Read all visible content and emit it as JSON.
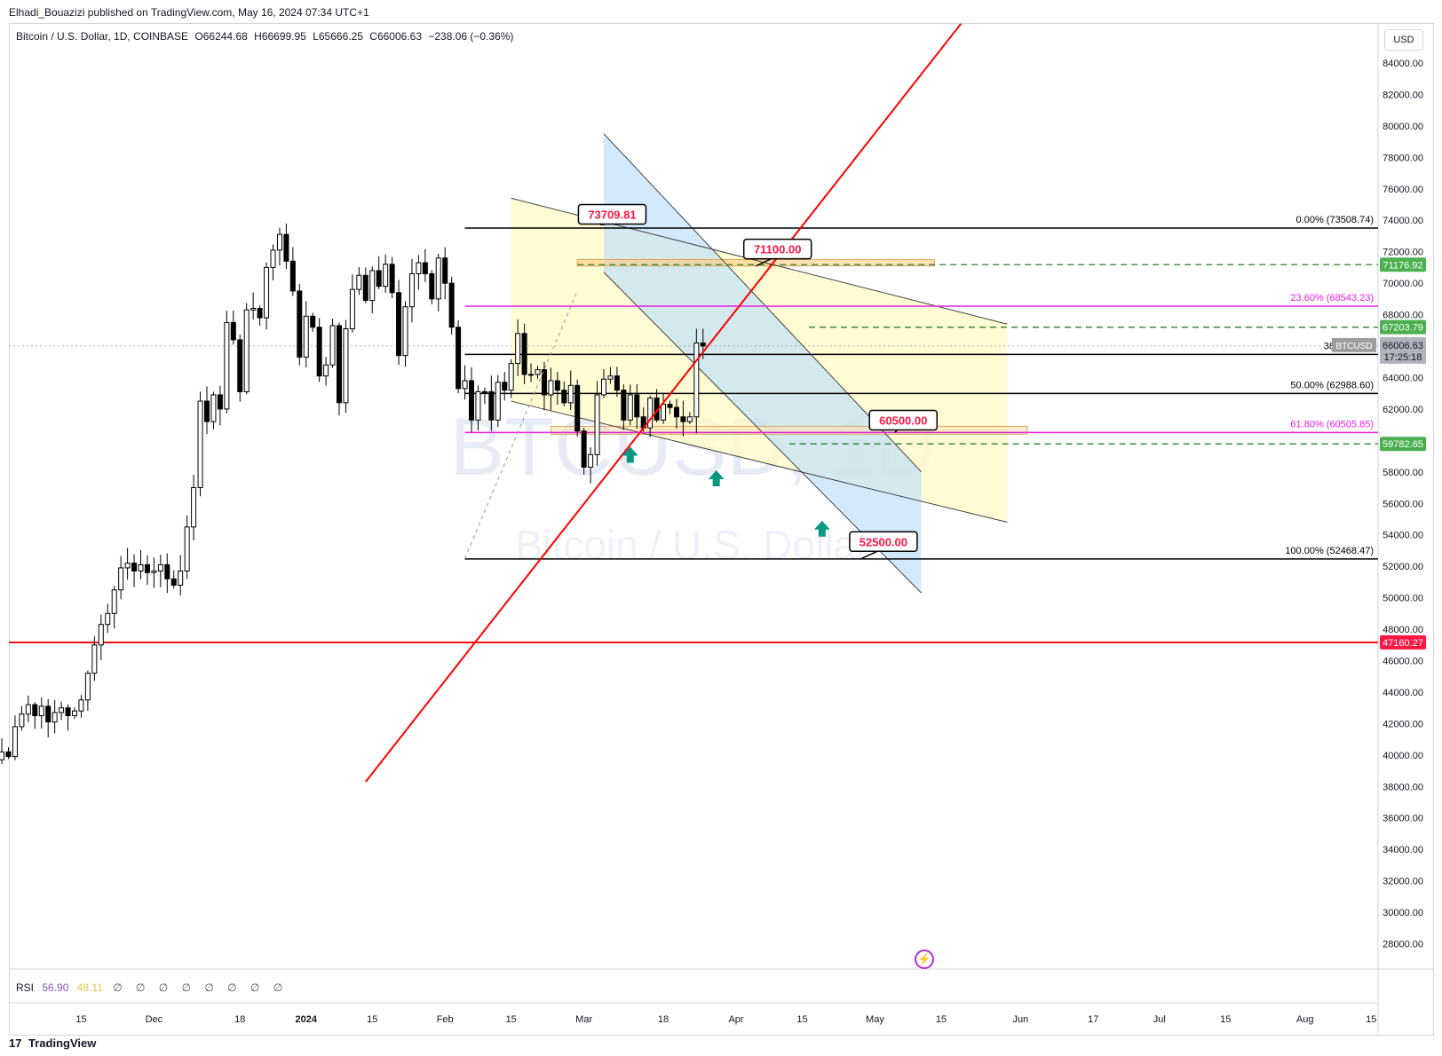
{
  "header": {
    "published": "Elhadi_Bouazizi published on TradingView.com, May 16, 2024 07:34 UTC+1"
  },
  "legend": {
    "symbol": "Bitcoin / U.S. Dollar, 1D, COINBASE",
    "open": "O66244.68",
    "high": "H66699.95",
    "low": "L65666.25",
    "close": "C66006.63",
    "change": "−238.06 (−0.36%)"
  },
  "currency_label": "USD",
  "watermark": {
    "line1": "BTCUSD, 1D",
    "line2": "Bitcoin / U.S. Dollar"
  },
  "rsi": {
    "label": "RSI",
    "value1": "56.90",
    "value2": "48.11",
    "placeholders": "∅ ∅ ∅ ∅ ∅ ∅ ∅ ∅"
  },
  "footer": {
    "brand": "TradingView"
  },
  "colors": {
    "up": "#000000",
    "down": "#000000",
    "trend": "#ff0000",
    "fib_pink": "#e91ee0",
    "green_label": "#4caf50",
    "red_label": "#ff1744",
    "blue_zone": "#bbdefb",
    "yellow_zone": "#fff9c4",
    "teal_arrow": "#089981"
  },
  "chart_data": {
    "type": "candlestick",
    "title": "Bitcoin / U.S. Dollar, 1D, COINBASE",
    "ylim": [
      26000,
      86000
    ],
    "y_ticks": [
      "84000.00",
      "82000.00",
      "80000.00",
      "78000.00",
      "76000.00",
      "74000.00",
      "72000.00",
      "70000.00",
      "68000.00",
      "66000.00",
      "64000.00",
      "62000.00",
      "60000.00",
      "58000.00",
      "56000.00",
      "54000.00",
      "52000.00",
      "50000.00",
      "48000.00",
      "46000.00",
      "44000.00",
      "42000.00",
      "40000.00",
      "38000.00",
      "36000.00",
      "34000.00",
      "32000.00",
      "30000.00",
      "28000.00"
    ],
    "x_ticks": [
      {
        "label": "15",
        "day": -79
      },
      {
        "label": "Dec",
        "day": -68
      },
      {
        "label": "18",
        "day": -55
      },
      {
        "label": "2024",
        "day": -45
      },
      {
        "label": "15",
        "day": -35
      },
      {
        "label": "Feb",
        "day": -24
      },
      {
        "label": "15",
        "day": -14
      },
      {
        "label": "Mar",
        "day": -3
      },
      {
        "label": "18",
        "day": 9
      },
      {
        "label": "Apr",
        "day": 20
      },
      {
        "label": "15",
        "day": 30
      },
      {
        "label": "May",
        "day": 41
      },
      {
        "label": "15",
        "day": 51
      },
      {
        "label": "Jun",
        "day": 63
      },
      {
        "label": "17",
        "day": 74
      },
      {
        "label": "Jul",
        "day": 84
      },
      {
        "label": "15",
        "day": 94
      },
      {
        "label": "Aug",
        "day": 106
      },
      {
        "label": "15",
        "day": 116
      }
    ],
    "candles_close": [
      35500,
      36800,
      37200,
      36900,
      37800,
      37400,
      36800,
      37300,
      36500,
      37900,
      37100,
      36200,
      36900,
      37700,
      37200,
      37900,
      38200,
      38000,
      37400,
      37800,
      38600,
      39400,
      40200,
      42300,
      44200,
      43600,
      43800,
      42400,
      43700,
      44100,
      43100,
      41700,
      42900,
      42200,
      41600,
      42800,
      42400,
      43600,
      44200,
      43800,
      44000,
      43300,
      43400,
      42800,
      44200,
      43700,
      42500,
      43000,
      42800,
      44200,
      45800,
      45000,
      43100,
      44200,
      45600,
      46700,
      46300,
      42700,
      42800,
      42600,
      42000,
      41800,
      41600,
      39700,
      40200,
      39900,
      41800,
      42600,
      43200,
      42500,
      43100,
      42100,
      42700,
      43000,
      42500,
      42800,
      43500,
      45200,
      47000,
      48300,
      49000,
      50500,
      51900,
      52200,
      51700,
      52100,
      51600,
      51700,
      52100,
      51200,
      50800,
      51700,
      54500,
      57000,
      62500,
      61200,
      62900,
      62000,
      67500,
      66400,
      63100,
      68300,
      68400,
      67800,
      71000,
      72100,
      73100,
      71400,
      69500,
      65300,
      67900,
      67200,
      64100,
      64800,
      67300,
      62400,
      67100,
      69600,
      70500,
      68900,
      70800,
      69800,
      71200,
      69400,
      65400,
      68500,
      70600,
      71300,
      70600,
      69000,
      71600,
      70000,
      67200,
      63300,
      63800,
      61300,
      63100,
      63100,
      61300,
      63700,
      63200,
      64900,
      66800,
      64200,
      64200,
      64500,
      62900,
      63800,
      63200,
      62400,
      63500,
      60600,
      58300,
      59100,
      62900,
      63900,
      64100,
      63200,
      61300,
      62900,
      61500,
      60800,
      62700,
      61300,
      62300,
      62100,
      61500,
      61200,
      61500,
      66200,
      66006
    ],
    "last_day": 15,
    "first_day": -165,
    "last_price": "66006.63",
    "last_price_tag": "BTCUSD",
    "countdown": "17:25:18",
    "fib_levels": [
      {
        "label": "0.00% (73508.74)",
        "price": 73508.74,
        "color": "#000000"
      },
      {
        "label": "23.60% (68543.23)",
        "price": 68543.23,
        "color": "#e91ee0"
      },
      {
        "label": "38.20% (65",
        "price": 65470,
        "color": "#000000"
      },
      {
        "label": "50.00% (62988.60)",
        "price": 62988.6,
        "color": "#000000"
      },
      {
        "label": "61.80% (60505.85)",
        "price": 60505.85,
        "color": "#e91ee0"
      },
      {
        "label": "100.00% (52468.47)",
        "price": 52468.47,
        "color": "#000000"
      }
    ],
    "price_labels": [
      {
        "text": "71176.92",
        "price": 71176.92,
        "color": "#4caf50"
      },
      {
        "text": "67203.79",
        "price": 67203.79,
        "color": "#4caf50"
      },
      {
        "text": "59782.65",
        "price": 59782.65,
        "color": "#4caf50"
      },
      {
        "text": "47160.27",
        "price": 47160.27,
        "color": "#ff1744"
      }
    ],
    "callouts": [
      {
        "text": "73709.81",
        "price": 73709.81,
        "day": 0
      },
      {
        "text": "71100.00",
        "price": 71100,
        "day": 26
      },
      {
        "text": "60500.00",
        "price": 60500,
        "day": 55
      },
      {
        "text": "52500.00",
        "price": 52500,
        "day": 47
      }
    ],
    "horizontal_red": 47160.27
  }
}
